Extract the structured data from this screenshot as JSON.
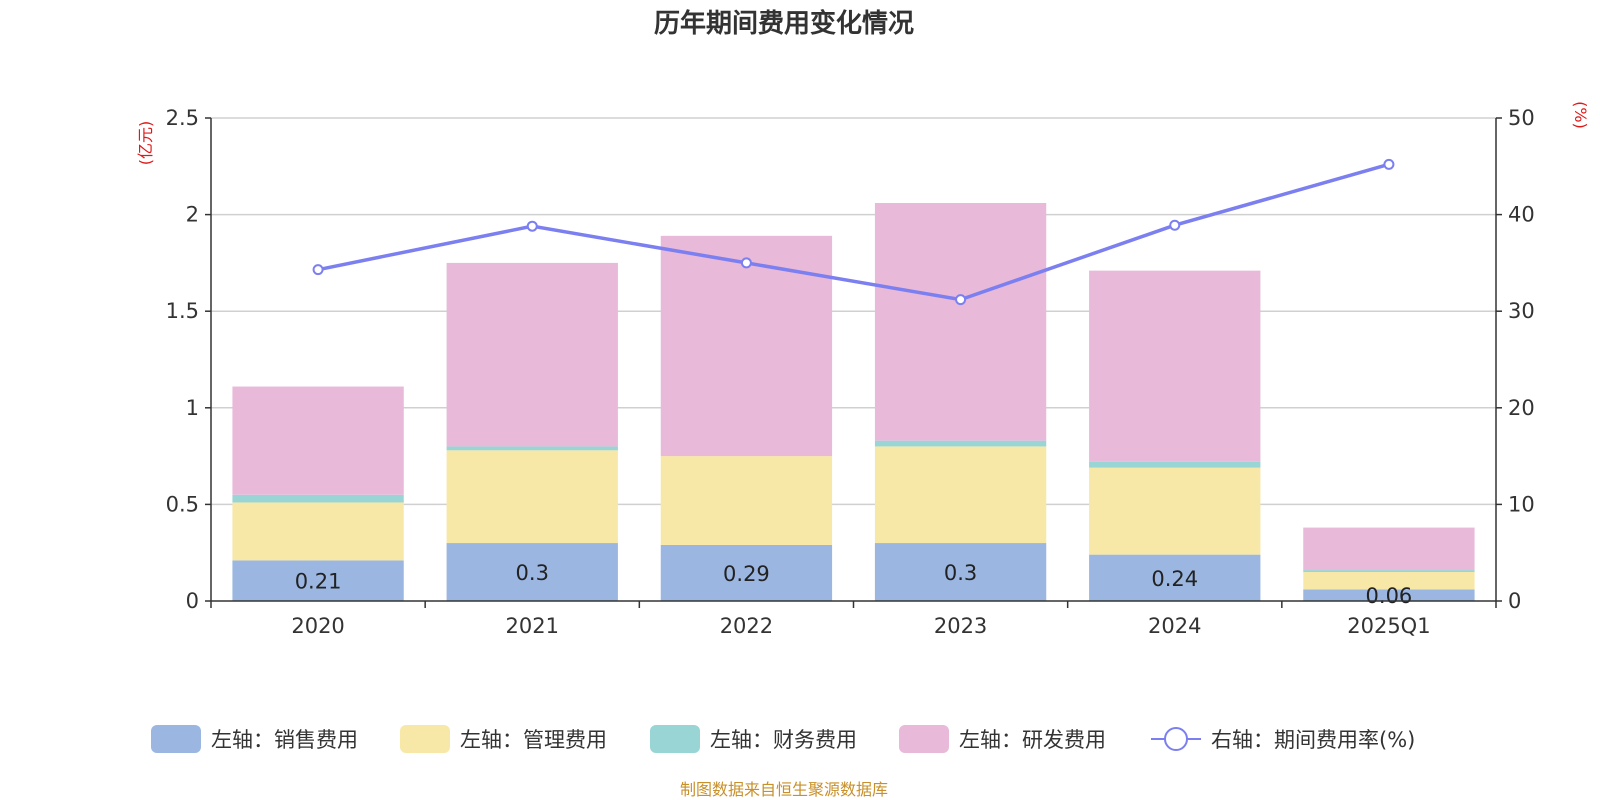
{
  "chart_data": {
    "type": "bar",
    "title": "历年期间费用变化情况",
    "categories": [
      "2020",
      "2021",
      "2022",
      "2023",
      "2024",
      "2025Q1"
    ],
    "left_axis": {
      "unit_label": "(亿元)",
      "ylim": [
        0,
        2.5
      ],
      "ticks": [
        "0",
        "0.5",
        "1",
        "1.5",
        "2",
        "2.5"
      ]
    },
    "right_axis": {
      "unit_label": "(%)",
      "ylim": [
        0,
        50
      ],
      "ticks": [
        "0",
        "10",
        "20",
        "30",
        "40",
        "50"
      ]
    },
    "grid": true,
    "stacked": true,
    "series": [
      {
        "name": "左轴：销售费用",
        "axis": "left",
        "type": "bar",
        "color": "#9bb7e1",
        "values": [
          0.21,
          0.3,
          0.29,
          0.3,
          0.24,
          0.06
        ],
        "labels": [
          "0.21",
          "0.3",
          "0.29",
          "0.3",
          "0.24",
          "0.06"
        ]
      },
      {
        "name": "左轴：管理费用",
        "axis": "left",
        "type": "bar",
        "color": "#f8e8a8",
        "values": [
          0.3,
          0.48,
          0.46,
          0.5,
          0.45,
          0.09
        ]
      },
      {
        "name": "左轴：财务费用",
        "axis": "left",
        "type": "bar",
        "color": "#99d5d5",
        "values": [
          0.04,
          0.02,
          0.0,
          0.03,
          0.03,
          0.01
        ]
      },
      {
        "name": "左轴：研发费用",
        "axis": "left",
        "type": "bar",
        "color": "#e8b9d9",
        "values": [
          0.56,
          0.95,
          1.14,
          1.23,
          0.99,
          0.22
        ]
      },
      {
        "name": "右轴：期间费用率(%)",
        "axis": "right",
        "type": "line",
        "color": "#7b7ff0",
        "values": [
          34.3,
          38.8,
          35.0,
          31.2,
          38.9,
          45.2
        ]
      }
    ],
    "legend_position": "bottom"
  },
  "source_note": "制图数据来自恒生聚源数据库"
}
